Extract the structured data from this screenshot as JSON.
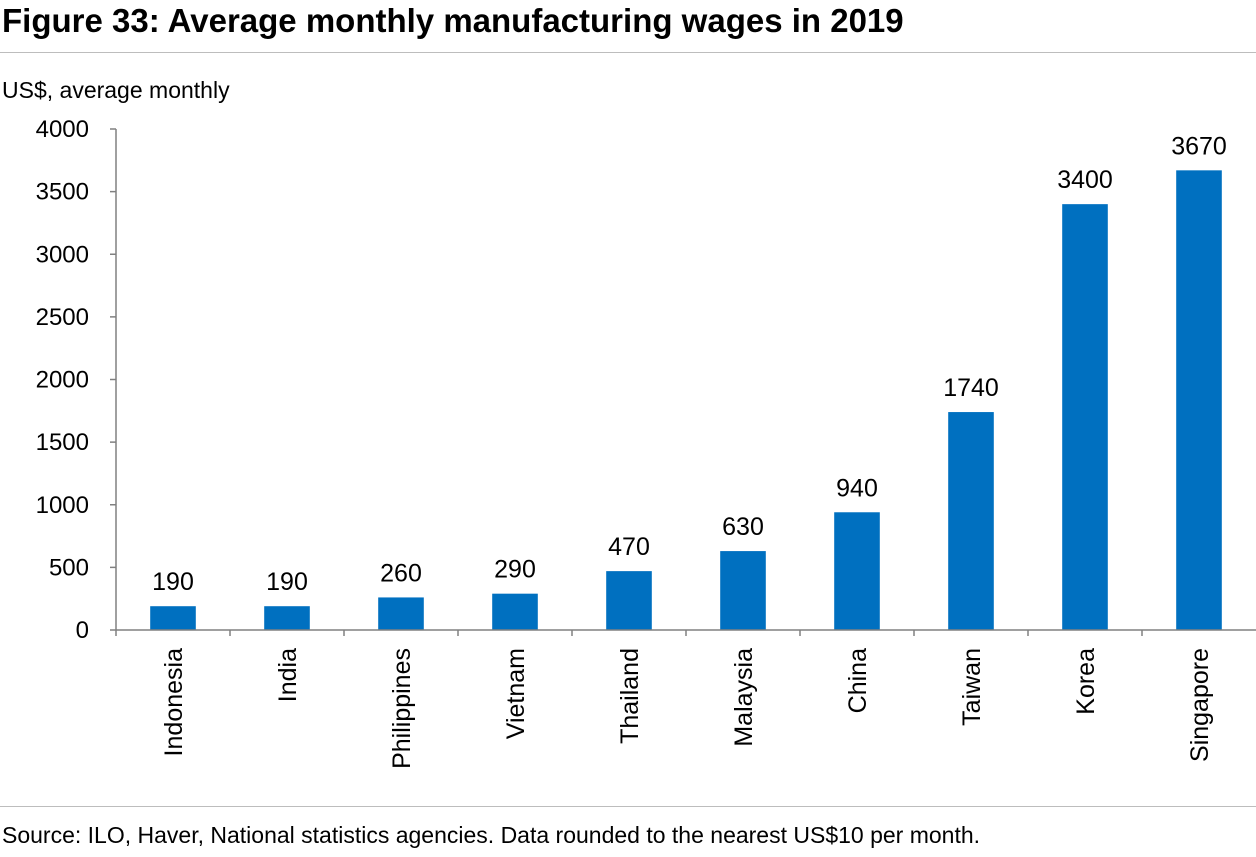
{
  "figure": {
    "title": "Figure 33: Average monthly manufacturing wages in 2019",
    "source": "Source: ILO, Haver, National statistics agencies. Data rounded to the nearest US$10 per month."
  },
  "colors": {
    "bar": "#0070C0",
    "axis": "#808080",
    "rule": "#bdbdbd"
  },
  "chart_data": {
    "type": "bar",
    "title": "Figure 33: Average monthly manufacturing wages in 2019",
    "ylabel": "US$, average monthly",
    "xlabel": "",
    "categories": [
      "Indonesia",
      "India",
      "Philippines",
      "Vietnam",
      "Thailand",
      "Malaysia",
      "China",
      "Taiwan",
      "Korea",
      "Singapore"
    ],
    "values": [
      190,
      190,
      260,
      290,
      470,
      630,
      940,
      1740,
      3400,
      3670
    ],
    "data_labels": [
      "190",
      "190",
      "260",
      "290",
      "470",
      "630",
      "940",
      "1740",
      "3400",
      "3670"
    ],
    "ylim": [
      0,
      4000
    ],
    "yticks": [
      0,
      500,
      1000,
      1500,
      2000,
      2500,
      3000,
      3500,
      4000
    ],
    "ytick_labels": [
      "0",
      "500",
      "1000",
      "1500",
      "2000",
      "2500",
      "3000",
      "3500",
      "4000"
    ],
    "grid": false,
    "legend": "none"
  }
}
